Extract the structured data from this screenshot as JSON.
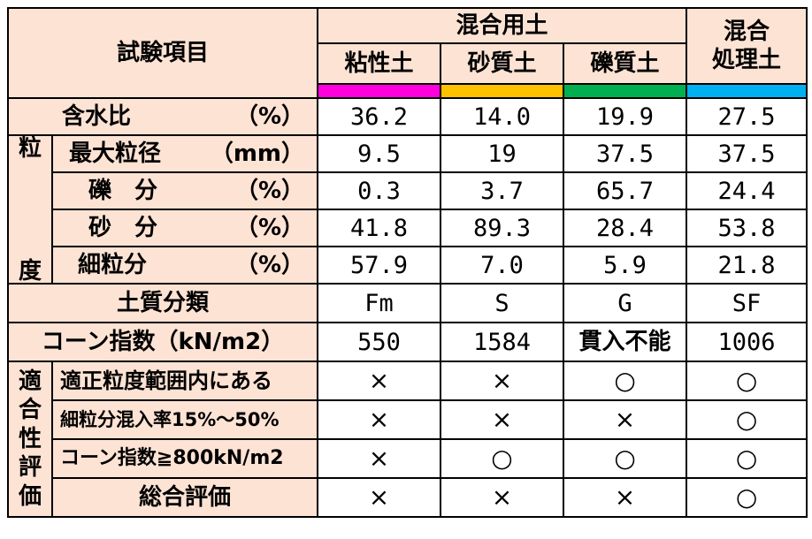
{
  "header": {
    "test_item": "試験項目",
    "mixed_soil": "混合用土",
    "cols": [
      "粘性土",
      "砂質土",
      "礫質土"
    ],
    "treated": "混合\n処理土",
    "treated_line1": "混合",
    "treated_line2": "処理土",
    "colors": [
      "#ff00dd",
      "#ffc000",
      "#00b050",
      "#00b0f0"
    ]
  },
  "rows": {
    "water": {
      "label": "含水比",
      "unit": "（%）",
      "values": [
        "36.2",
        "14.0",
        "19.9",
        "27.5"
      ]
    },
    "granularity_label_top": "粒",
    "granularity_label_bottom": "度",
    "maxsize": {
      "label": "最大粒径",
      "unit": "（mm）",
      "values": [
        "9.5",
        "19",
        "37.5",
        "37.5"
      ]
    },
    "gravel": {
      "label": "礫　分",
      "unit": "（%）",
      "values": [
        "0.3",
        "3.7",
        "65.7",
        "24.4"
      ]
    },
    "sand": {
      "label": "砂　分",
      "unit": "（%）",
      "values": [
        "41.8",
        "89.3",
        "28.4",
        "53.8"
      ]
    },
    "fine": {
      "label": "細粒分",
      "unit": "（%）",
      "values": [
        "57.9",
        "7.0",
        "5.9",
        "21.8"
      ]
    },
    "classification": {
      "label": "土質分類",
      "values": [
        "Fm",
        "S",
        "G",
        "SF"
      ]
    },
    "cone": {
      "label": "コーン指数（kN/m2）",
      "values": [
        "550",
        "1584",
        "貫入不能",
        "1006"
      ]
    },
    "suitability_label": "適合性評価",
    "suitability_chars": [
      "適",
      "合",
      "性",
      "評",
      "価"
    ],
    "cond1": {
      "label": "適正粒度範囲内にある",
      "values": [
        "×",
        "×",
        "○",
        "○"
      ]
    },
    "cond2": {
      "label": "細粒分混入率15%～50%",
      "values": [
        "×",
        "×",
        "×",
        "○"
      ]
    },
    "cond3": {
      "label": "コーン指数≧800kN/m2",
      "values": [
        "×",
        "○",
        "○",
        "○"
      ]
    },
    "overall": {
      "label": "総合評価",
      "values": [
        "×",
        "×",
        "×",
        "○"
      ]
    }
  }
}
